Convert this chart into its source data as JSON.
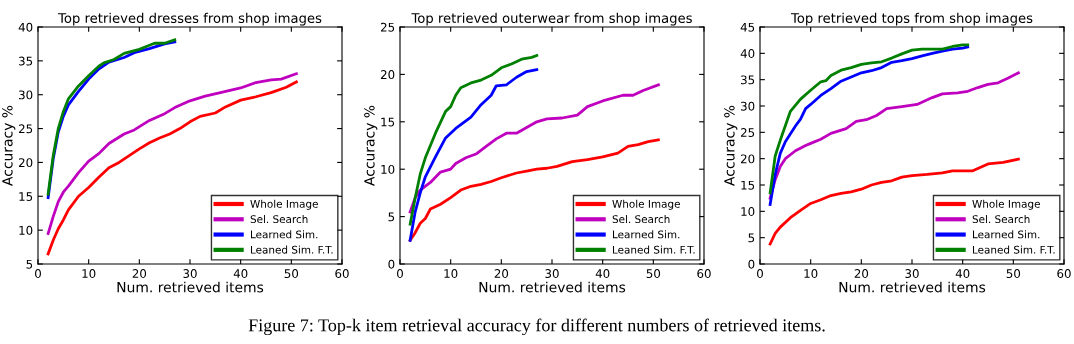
{
  "chart_data": [
    {
      "type": "line",
      "title": "Top retrieved dresses from shop images",
      "xlabel": "Num. retrieved items",
      "ylabel": "Accuracy %",
      "xlim": [
        0,
        60
      ],
      "xticks": [
        0,
        10,
        20,
        30,
        40,
        50,
        60
      ],
      "ylim": [
        5,
        40
      ],
      "yticks": [
        5,
        10,
        15,
        20,
        25,
        30,
        35,
        40
      ],
      "legend": "bottom right",
      "grid": false,
      "marker": "none",
      "line_style": "solid",
      "annotations": [
        "Figure 7: Top-k item retrieval accuracy for different numbers of retrieved items."
      ],
      "series": [
        {
          "name": "Whole Image",
          "color": "#ff0000",
          "x": [
            2,
            3,
            4,
            5,
            6,
            8,
            10,
            12,
            14,
            16,
            18,
            20,
            22,
            24,
            26,
            28,
            30,
            32,
            35,
            37,
            40,
            43,
            46,
            49,
            51
          ],
          "values": [
            6.5,
            8.5,
            10.2,
            11.5,
            13,
            15,
            16.3,
            17.8,
            19.2,
            20,
            21,
            22,
            22.9,
            23.6,
            24.2,
            25,
            26,
            26.8,
            27.3,
            28.2,
            29.2,
            29.7,
            30.3,
            31.1,
            31.9
          ]
        },
        {
          "name": "Sel. Search",
          "color": "#bf00bf",
          "x": [
            2,
            3,
            4,
            5,
            6,
            8,
            10,
            12,
            14,
            17,
            19,
            22,
            25,
            27,
            30,
            33,
            36,
            40,
            43,
            46,
            48,
            51
          ],
          "values": [
            9.5,
            12,
            14.2,
            15.6,
            16.5,
            18.5,
            20.2,
            21.3,
            22.8,
            24.2,
            24.8,
            26.2,
            27.2,
            28.1,
            29.1,
            29.8,
            30.3,
            31,
            31.8,
            32.2,
            32.3,
            33.1
          ]
        },
        {
          "name": "Learned Sim.",
          "color": "#0000ff",
          "x": [
            2,
            3,
            4,
            5,
            6,
            8,
            10,
            12,
            14,
            17,
            19,
            22,
            25,
            27
          ],
          "values": [
            14.8,
            20.5,
            24.5,
            26.8,
            28.5,
            30.5,
            32.3,
            33.8,
            34.8,
            35.5,
            36.2,
            36.8,
            37.5,
            37.8
          ]
        },
        {
          "name": "Leaned Sim. F.T.",
          "color": "#008000",
          "x": [
            2,
            3,
            4,
            5,
            6,
            8,
            10,
            12,
            13,
            15,
            17,
            20,
            22,
            23,
            25,
            27
          ],
          "values": [
            15.3,
            21,
            25,
            27.5,
            29.4,
            31.3,
            32.8,
            34.2,
            34.7,
            35.2,
            36.1,
            36.7,
            37.3,
            37.6,
            37.6,
            38.1
          ]
        }
      ]
    },
    {
      "type": "line",
      "title": "Top retrieved outerwear from shop images",
      "xlabel": "Num. retrieved items",
      "ylabel": "Accuracy %",
      "xlim": [
        0,
        60
      ],
      "xticks": [
        0,
        10,
        20,
        30,
        40,
        50,
        60
      ],
      "ylim": [
        0,
        25
      ],
      "yticks": [
        0,
        5,
        10,
        15,
        20,
        25
      ],
      "legend": "bottom right",
      "grid": false,
      "marker": "none",
      "line_style": "solid",
      "series": [
        {
          "name": "Whole Image",
          "color": "#ff0000",
          "x": [
            2,
            3,
            4,
            5,
            6,
            8,
            10,
            12,
            14,
            16,
            18,
            20,
            23,
            25,
            27,
            29,
            31,
            34,
            37,
            40,
            43,
            45,
            47,
            49,
            51
          ],
          "values": [
            2.5,
            3.3,
            4.3,
            4.8,
            5.8,
            6.3,
            7,
            7.8,
            8.2,
            8.4,
            8.7,
            9.1,
            9.6,
            9.8,
            10,
            10.1,
            10.3,
            10.8,
            11,
            11.3,
            11.7,
            12.4,
            12.6,
            12.9,
            13.1
          ]
        },
        {
          "name": "Sel. Search",
          "color": "#bf00bf",
          "x": [
            2,
            3,
            4,
            6,
            8,
            10,
            11,
            13,
            15,
            17,
            19,
            21,
            23,
            25,
            27,
            29,
            32,
            35,
            37,
            40,
            44,
            46,
            48,
            51
          ],
          "values": [
            5.5,
            7,
            7.8,
            8.6,
            9.7,
            10,
            10.6,
            11.2,
            11.6,
            12.4,
            13.2,
            13.8,
            13.8,
            14.4,
            15,
            15.3,
            15.4,
            15.7,
            16.6,
            17.2,
            17.8,
            17.8,
            18.3,
            18.9
          ]
        },
        {
          "name": "Learned Sim.",
          "color": "#0000ff",
          "x": [
            2,
            3,
            4,
            5,
            7,
            9,
            11,
            14,
            16,
            18,
            19,
            21,
            23,
            25,
            27
          ],
          "values": [
            2.5,
            5.5,
            7.5,
            9.2,
            11.3,
            13.3,
            14.3,
            15.5,
            16.8,
            17.8,
            18.8,
            18.9,
            19.7,
            20.3,
            20.5
          ]
        },
        {
          "name": "Leaned Sim. F.T.",
          "color": "#008000",
          "x": [
            2,
            3,
            4,
            5,
            7,
            9,
            10,
            11,
            12,
            14,
            16,
            18,
            20,
            22,
            24,
            26,
            27
          ],
          "values": [
            4.2,
            7,
            9.5,
            11.2,
            13.8,
            16.1,
            16.6,
            17.8,
            18.6,
            19.1,
            19.4,
            19.9,
            20.7,
            21.1,
            21.6,
            21.8,
            22
          ]
        }
      ]
    },
    {
      "type": "line",
      "title": "Top retrieved tops from shop images",
      "xlabel": "Num. retrieved items",
      "ylabel": "Accuracy %",
      "xlim": [
        0,
        60
      ],
      "xticks": [
        0,
        10,
        20,
        30,
        40,
        50,
        60
      ],
      "ylim": [
        0,
        45
      ],
      "yticks": [
        0,
        5,
        10,
        15,
        20,
        25,
        30,
        35,
        40,
        45
      ],
      "legend": "bottom right",
      "grid": false,
      "marker": "none",
      "line_style": "solid",
      "series": [
        {
          "name": "Whole Image",
          "color": "#ff0000",
          "x": [
            2,
            3,
            4,
            6,
            8,
            10,
            12,
            14,
            16,
            18,
            20,
            22,
            24,
            26,
            28,
            30,
            33,
            36,
            38,
            42,
            45,
            48,
            51
          ],
          "values": [
            3.8,
            5.8,
            7,
            8.8,
            10.2,
            11.5,
            12.2,
            13,
            13.4,
            13.7,
            14.2,
            15,
            15.5,
            15.8,
            16.5,
            16.8,
            17,
            17.3,
            17.7,
            17.7,
            19,
            19.3,
            19.9
          ]
        },
        {
          "name": "Sel. Search",
          "color": "#bf00bf",
          "x": [
            2,
            3,
            4,
            5,
            7,
            9,
            10,
            12,
            14,
            17,
            19,
            21,
            23,
            25,
            28,
            31,
            34,
            36,
            39,
            41,
            43,
            45,
            47,
            49,
            51
          ],
          "values": [
            12.5,
            16,
            18.5,
            20,
            21.5,
            22.5,
            22.9,
            23.7,
            24.8,
            25.7,
            27.1,
            27.4,
            28.2,
            29.5,
            29.9,
            30.3,
            31.6,
            32.3,
            32.5,
            32.8,
            33.5,
            34.1,
            34.4,
            35.3,
            36.3
          ]
        },
        {
          "name": "Learned Sim.",
          "color": "#0000ff",
          "x": [
            2,
            3,
            4,
            5,
            7,
            8,
            9,
            10,
            12,
            14,
            16,
            18,
            20,
            22,
            24,
            26,
            28,
            30,
            32,
            34,
            36,
            38,
            40,
            41
          ],
          "values": [
            11.3,
            17,
            21,
            23.2,
            26.2,
            27.5,
            29.5,
            30.3,
            32,
            33.3,
            34.7,
            35.5,
            36.3,
            36.7,
            37.3,
            38.3,
            38.6,
            39,
            39.5,
            40,
            40.4,
            40.8,
            41,
            41.2
          ]
        },
        {
          "name": "Leaned Sim. F.T.",
          "color": "#008000",
          "x": [
            2,
            3,
            4,
            6,
            8,
            10,
            12,
            13,
            14,
            16,
            18,
            20,
            22,
            24,
            26,
            28,
            30,
            32,
            36,
            38,
            40,
            41
          ],
          "values": [
            13.5,
            20.5,
            23.5,
            29,
            31.3,
            33,
            34.6,
            34.8,
            35.8,
            36.8,
            37.3,
            37.9,
            38.2,
            38.4,
            39.1,
            39.9,
            40.6,
            40.8,
            40.8,
            41.3,
            41.6,
            41.6
          ]
        }
      ]
    }
  ]
}
